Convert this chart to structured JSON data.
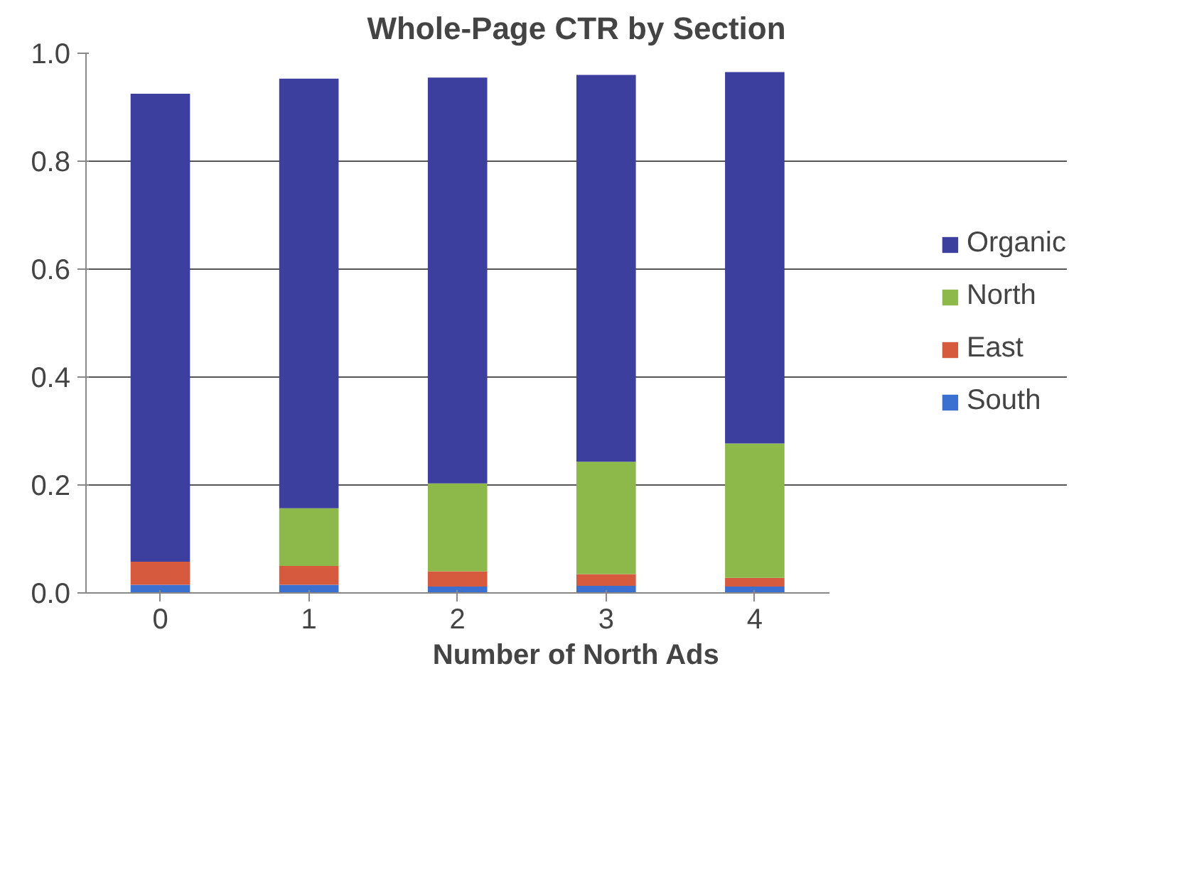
{
  "chart_data": {
    "type": "bar",
    "title": "Whole-Page CTR by Section",
    "xlabel": "Number of North Ads",
    "categories": [
      "0",
      "1",
      "2",
      "3",
      "4"
    ],
    "stacked": true,
    "series": [
      {
        "name": "South",
        "color": "#3b6fd0",
        "values": [
          0.015,
          0.015,
          0.012,
          0.013,
          0.012
        ]
      },
      {
        "name": "East",
        "color": "#d65a3e",
        "values": [
          0.043,
          0.035,
          0.028,
          0.022,
          0.016
        ]
      },
      {
        "name": "North",
        "color": "#8db84a",
        "values": [
          0,
          0.107,
          0.163,
          0.208,
          0.249
        ]
      },
      {
        "name": "Organic",
        "color": "#3c3f9e",
        "values": [
          0.867,
          0.796,
          0.752,
          0.717,
          0.688
        ]
      }
    ],
    "ylim": [
      0,
      1.0
    ],
    "yticks": [
      {
        "value": 0,
        "label": "0.0"
      },
      {
        "value": 0.2,
        "label": "0.2"
      },
      {
        "value": 0.4,
        "label": "0.4"
      },
      {
        "value": 0.6,
        "label": "0.6"
      },
      {
        "value": 0.8,
        "label": "0.8"
      },
      {
        "value": 1.0,
        "label": "1.0"
      }
    ],
    "grid": "y",
    "legend": "right"
  }
}
